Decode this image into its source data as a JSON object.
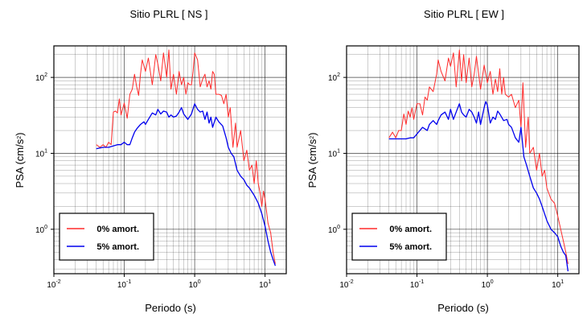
{
  "chart_data": [
    {
      "type": "line",
      "title": "Sitio PLRL [ NS ]",
      "xlabel": "Periodo (s)",
      "ylabel": "PSA (cm/s²)",
      "ylabel_base": "PSA (cm/s",
      "ylabel_exp": "2",
      "ylabel_close": ")",
      "x_scale": "log",
      "y_scale": "log",
      "xlim": [
        0.01,
        20
      ],
      "ylim": [
        0.26,
        260
      ],
      "grid": true,
      "legend_position": "bottom-left",
      "x_ticks": [
        {
          "value": 0.01,
          "base": "10",
          "exp": "-2"
        },
        {
          "value": 0.1,
          "base": "10",
          "exp": "-1"
        },
        {
          "value": 1,
          "base": "10",
          "exp": "0"
        },
        {
          "value": 10,
          "base": "10",
          "exp": "1"
        }
      ],
      "y_ticks": [
        {
          "value": 1,
          "base": "10",
          "exp": "0"
        },
        {
          "value": 10,
          "base": "10",
          "exp": "1"
        },
        {
          "value": 100,
          "base": "10",
          "exp": "2"
        }
      ],
      "series": [
        {
          "name": "0% amort.",
          "color": "#ff2a2a",
          "x": [
            0.04,
            0.045,
            0.05,
            0.055,
            0.06,
            0.065,
            0.07,
            0.075,
            0.08,
            0.085,
            0.09,
            0.1,
            0.11,
            0.12,
            0.13,
            0.14,
            0.15,
            0.16,
            0.17,
            0.18,
            0.2,
            0.22,
            0.25,
            0.28,
            0.3,
            0.33,
            0.36,
            0.4,
            0.43,
            0.46,
            0.5,
            0.55,
            0.6,
            0.65,
            0.7,
            0.75,
            0.8,
            0.85,
            0.9,
            0.95,
            1.0,
            1.1,
            1.2,
            1.3,
            1.4,
            1.5,
            1.6,
            1.7,
            1.8,
            1.9,
            2.0,
            2.2,
            2.4,
            2.6,
            2.8,
            3.0,
            3.2,
            3.5,
            3.8,
            4.0,
            4.5,
            5.0,
            5.5,
            6.0,
            6.5,
            7.0,
            7.5,
            8.0,
            8.5,
            9.0,
            9.5,
            10,
            11,
            12,
            13,
            14
          ],
          "y": [
            13,
            12,
            13,
            12,
            14,
            13,
            35,
            36,
            34,
            52,
            32,
            46,
            29,
            60,
            70,
            110,
            75,
            58,
            110,
            170,
            120,
            180,
            80,
            200,
            150,
            90,
            210,
            100,
            230,
            70,
            110,
            60,
            120,
            80,
            100,
            60,
            85,
            80,
            80,
            120,
            210,
            170,
            75,
            95,
            110,
            75,
            90,
            70,
            120,
            110,
            60,
            60,
            58,
            45,
            60,
            30,
            40,
            12,
            25,
            12,
            20,
            8,
            11,
            6,
            7,
            4,
            8,
            4,
            3,
            2,
            3.2,
            2.5,
            1.2,
            0.9,
            0.5,
            0.35
          ]
        },
        {
          "name": "5% amort.",
          "color": "#0000ee",
          "x": [
            0.04,
            0.05,
            0.06,
            0.07,
            0.08,
            0.09,
            0.1,
            0.11,
            0.12,
            0.13,
            0.14,
            0.15,
            0.17,
            0.19,
            0.2,
            0.22,
            0.25,
            0.28,
            0.3,
            0.33,
            0.36,
            0.4,
            0.43,
            0.46,
            0.5,
            0.55,
            0.6,
            0.65,
            0.7,
            0.8,
            0.9,
            1.0,
            1.1,
            1.2,
            1.3,
            1.4,
            1.5,
            1.6,
            1.7,
            1.8,
            2.0,
            2.2,
            2.5,
            2.8,
            3.0,
            3.3,
            3.6,
            4.0,
            4.5,
            5.0,
            5.5,
            6.0,
            7.0,
            8.0,
            9.0,
            10,
            11,
            12,
            13,
            14
          ],
          "y": [
            11.5,
            12,
            12,
            12.5,
            13,
            13,
            14,
            13,
            13,
            16,
            19,
            21,
            24,
            26,
            24,
            28,
            34,
            32,
            38,
            33,
            36,
            35,
            30,
            32,
            30,
            31,
            35,
            40,
            33,
            28,
            33,
            45,
            38,
            35,
            36,
            28,
            35,
            25,
            30,
            22,
            30,
            26,
            23,
            16,
            12,
            10,
            9,
            6,
            5,
            4.5,
            3.8,
            3.5,
            2.8,
            2.2,
            1.6,
            1.1,
            0.7,
            0.5,
            0.4,
            0.33
          ]
        }
      ]
    },
    {
      "type": "line",
      "title": "Sitio PLRL [ EW ]",
      "xlabel": "Periodo (s)",
      "ylabel": "PSA (cm/s²)",
      "ylabel_base": "PSA (cm/s",
      "ylabel_exp": "2",
      "ylabel_close": ")",
      "x_scale": "log",
      "y_scale": "log",
      "xlim": [
        0.01,
        20
      ],
      "ylim": [
        0.26,
        260
      ],
      "grid": true,
      "legend_position": "bottom-left",
      "x_ticks": [
        {
          "value": 0.01,
          "base": "10",
          "exp": "-2"
        },
        {
          "value": 0.1,
          "base": "10",
          "exp": "-1"
        },
        {
          "value": 1,
          "base": "10",
          "exp": "0"
        },
        {
          "value": 10,
          "base": "10",
          "exp": "1"
        }
      ],
      "y_ticks": [
        {
          "value": 1,
          "base": "10",
          "exp": "0"
        },
        {
          "value": 10,
          "base": "10",
          "exp": "1"
        },
        {
          "value": 100,
          "base": "10",
          "exp": "2"
        }
      ],
      "series": [
        {
          "name": "0% amort.",
          "color": "#ff2a2a",
          "x": [
            0.04,
            0.045,
            0.05,
            0.055,
            0.06,
            0.065,
            0.07,
            0.075,
            0.08,
            0.085,
            0.09,
            0.1,
            0.11,
            0.12,
            0.13,
            0.14,
            0.15,
            0.17,
            0.19,
            0.2,
            0.22,
            0.25,
            0.28,
            0.3,
            0.33,
            0.36,
            0.4,
            0.43,
            0.46,
            0.5,
            0.55,
            0.6,
            0.65,
            0.7,
            0.8,
            0.9,
            1.0,
            1.1,
            1.2,
            1.3,
            1.4,
            1.5,
            1.6,
            1.7,
            1.8,
            2.0,
            2.2,
            2.5,
            2.8,
            3.0,
            3.2,
            3.5,
            3.8,
            4.0,
            4.5,
            5.0,
            5.5,
            6.0,
            6.5,
            7.0,
            8.0,
            9.0,
            10,
            11,
            12,
            13,
            14
          ],
          "y": [
            16,
            19,
            16,
            20,
            20,
            33,
            24,
            36,
            30,
            40,
            28,
            45,
            45,
            32,
            55,
            50,
            75,
            65,
            110,
            170,
            120,
            90,
            180,
            140,
            210,
            75,
            230,
            90,
            200,
            85,
            180,
            75,
            110,
            190,
            70,
            145,
            85,
            120,
            60,
            95,
            65,
            130,
            60,
            100,
            60,
            55,
            60,
            40,
            50,
            22,
            85,
            12,
            30,
            10,
            12,
            6,
            10,
            5,
            6,
            3.5,
            2.5,
            2.2,
            1.5,
            1,
            0.7,
            0.5,
            0.35
          ]
        },
        {
          "name": "5% amort.",
          "color": "#0000ee",
          "x": [
            0.04,
            0.05,
            0.06,
            0.07,
            0.08,
            0.09,
            0.1,
            0.12,
            0.14,
            0.15,
            0.17,
            0.19,
            0.2,
            0.22,
            0.25,
            0.28,
            0.3,
            0.33,
            0.36,
            0.4,
            0.43,
            0.46,
            0.5,
            0.55,
            0.6,
            0.65,
            0.7,
            0.75,
            0.8,
            0.9,
            0.95,
            1.0,
            1.1,
            1.2,
            1.3,
            1.4,
            1.5,
            1.7,
            1.9,
            2.0,
            2.2,
            2.5,
            2.8,
            3.0,
            3.3,
            3.6,
            4.0,
            4.5,
            5.0,
            5.5,
            6.0,
            7.0,
            8.0,
            9.0,
            10,
            11,
            12,
            13,
            14
          ],
          "y": [
            15.5,
            15.5,
            15.5,
            15.5,
            16,
            16,
            18,
            22,
            20,
            24,
            27,
            24,
            27,
            32,
            35,
            28,
            38,
            28,
            35,
            45,
            35,
            32,
            30,
            38,
            35,
            30,
            25,
            35,
            24,
            40,
            48,
            43,
            25,
            30,
            28,
            36,
            33,
            27,
            28,
            24,
            22,
            16,
            14,
            22,
            9,
            7,
            5,
            3.5,
            3,
            2.5,
            2,
            1.3,
            1,
            0.9,
            0.8,
            0.6,
            0.5,
            0.45,
            0.28
          ]
        }
      ]
    }
  ]
}
